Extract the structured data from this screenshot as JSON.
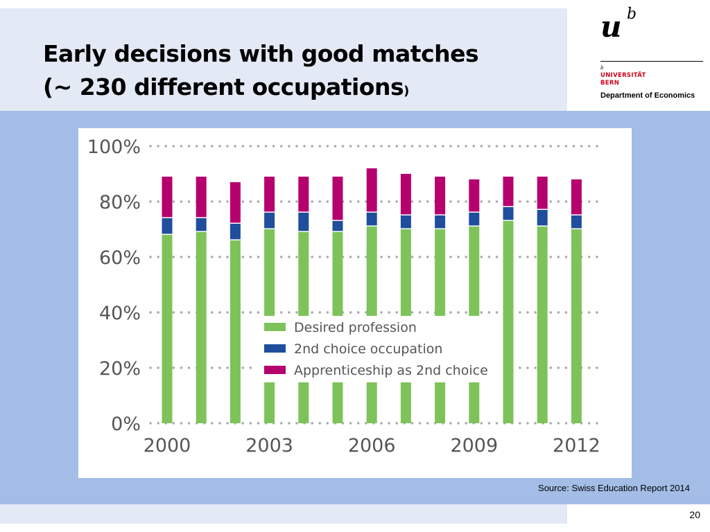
{
  "slide": {
    "title_line1": "Early decisions with good matches",
    "title_line2": "(~ 230 different occupations",
    "title_close_paren": ")",
    "source": "Source: Swiss Education Report 2014",
    "page_number": "20"
  },
  "logo": {
    "mark": "u",
    "superscript": "b",
    "small_b": "b",
    "university_line1": "UNIVERSITÄT",
    "university_line2": "BERN",
    "department": "Department of Economics"
  },
  "colors": {
    "header_band": "#e3e9f5",
    "main_band": "#a3bde6",
    "desired": "#7ec35a",
    "second_choice": "#1f4e9c",
    "apprenticeship": "#b5006e",
    "university_red": "#d0021b"
  },
  "chart_data": {
    "type": "bar",
    "stacked": true,
    "categories": [
      "2000",
      "2001",
      "2002",
      "2003",
      "2004",
      "2005",
      "2006",
      "2007",
      "2008",
      "2009",
      "2010",
      "2011",
      "2012"
    ],
    "x_tick_labels": [
      "2000",
      "2003",
      "2006",
      "2009",
      "2012"
    ],
    "y_tick_labels": [
      "0%",
      "20%",
      "40%",
      "60%",
      "80%",
      "100%"
    ],
    "ylim": [
      0,
      100
    ],
    "grid": "dotted horizontal",
    "legend_position": "lower-center",
    "series": [
      {
        "name": "Desired profession",
        "color": "#7ec35a",
        "values": [
          68,
          69,
          66,
          70,
          69,
          69,
          71,
          70,
          70,
          71,
          73,
          71,
          70
        ]
      },
      {
        "name": "2nd choice occupation",
        "color": "#1f4e9c",
        "values": [
          6,
          5,
          6,
          6,
          7,
          4,
          5,
          5,
          5,
          5,
          5,
          6,
          5
        ]
      },
      {
        "name": "Apprenticeship as 2nd choice",
        "color": "#b5006e",
        "values": [
          15,
          15,
          15,
          13,
          13,
          16,
          16,
          15,
          14,
          12,
          11,
          12,
          13
        ]
      }
    ]
  }
}
